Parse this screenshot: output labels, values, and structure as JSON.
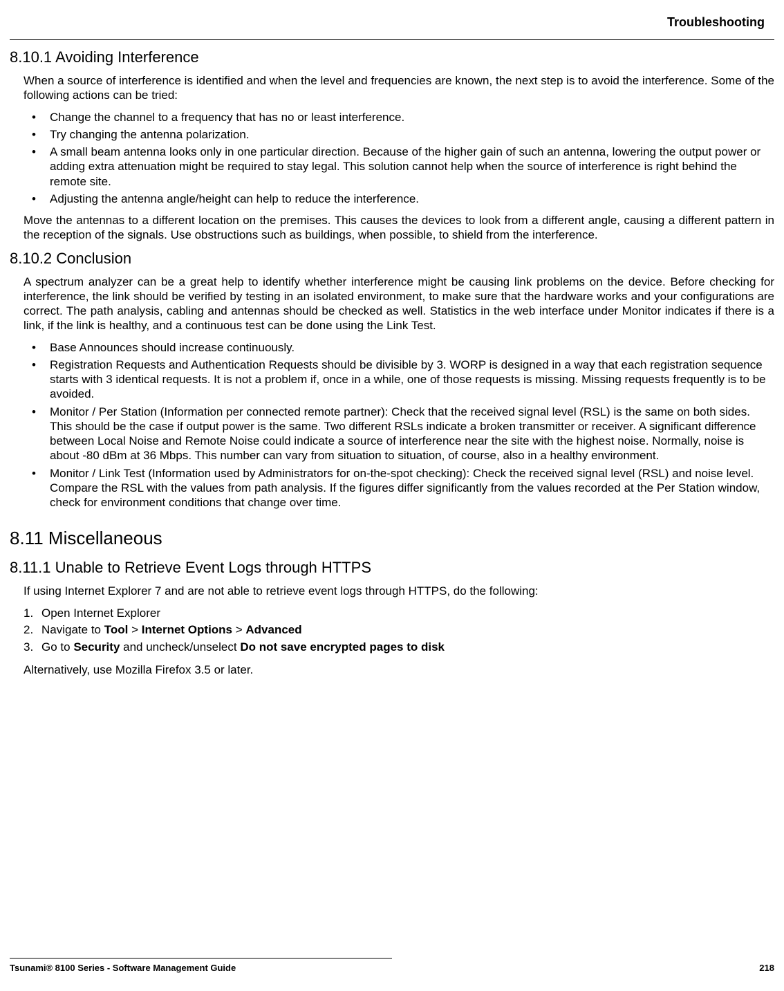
{
  "header": {
    "chapter": "Troubleshooting"
  },
  "sections": {
    "s1": {
      "number": "8.10.1",
      "title": "Avoiding Interference",
      "intro": "When a source of interference is identified and when the level and frequencies are known, the next step is to avoid the interference. Some of the following actions can be tried:",
      "bullets": [
        "Change the channel to a frequency that has no or least interference.",
        "Try changing the antenna polarization.",
        "A small beam antenna looks only in one particular direction. Because of the higher gain of such an antenna, lowering the output power or adding extra attenuation might be required to stay legal. This solution cannot help when the source of interference is right behind the remote site.",
        "Adjusting the antenna angle/height can help to reduce the interference."
      ],
      "outro": "Move the antennas to a different location on the premises. This causes the devices to look from a different angle, causing a different pattern in the reception of the signals. Use obstructions such as buildings, when possible, to shield from the interference."
    },
    "s2": {
      "number": "8.10.2",
      "title": "Conclusion",
      "intro": "A spectrum analyzer can be a great help to identify whether interference might be causing link problems on the device. Before checking for interference, the link should be verified by testing in an isolated environment, to make sure that the hardware works and your configurations are correct. The path analysis, cabling and antennas should be checked as well. Statistics in the web interface under Monitor indicates if there is a link, if the link is healthy, and a continuous test can be done using the Link Test.",
      "bullets": [
        "Base Announces should increase continuously.",
        "Registration Requests and Authentication Requests should be divisible by 3. WORP is designed in a way that each registration sequence starts with 3 identical requests. It is not a problem if, once in a while, one of those requests is missing. Missing requests frequently is to be avoided.",
        "Monitor / Per Station (Information per connected remote partner): Check that the received signal level (RSL) is the same on both sides. This should be the case if output power is the same. Two different RSLs indicate a broken transmitter or receiver. A significant difference between Local Noise and Remote Noise could indicate a source of interference near the site with the highest noise. Normally, noise is about -80 dBm at 36 Mbps. This number can vary from situation to situation, of course, also in a healthy environment.",
        "Monitor / Link Test (Information used by Administrators for on-the-spot checking): Check the received signal level (RSL) and noise level. Compare the RSL with the values from path analysis. If the figures differ significantly from the values recorded at the Per Station window, check for environment conditions that change over time."
      ]
    },
    "s3": {
      "number": "8.11",
      "title": "Miscellaneous"
    },
    "s4": {
      "number": "8.11.1",
      "title": "Unable to Retrieve Event Logs through HTTPS",
      "intro": "If using Internet Explorer 7 and are not able to retrieve event logs through HTTPS, do the following:",
      "steps": {
        "step1": "Open Internet Explorer",
        "step2_pre": "Navigate to ",
        "step2_b1": "Tool",
        "step2_sep1": " > ",
        "step2_b2": "Internet Options",
        "step2_sep2": " > ",
        "step2_b3": "Advanced",
        "step3_pre": "Go to ",
        "step3_b1": "Security",
        "step3_mid": " and uncheck/unselect ",
        "step3_b2": "Do not save encrypted pages to disk"
      },
      "outro": "Alternatively, use Mozilla Firefox 3.5 or later."
    }
  },
  "footer": {
    "product": "Tsunami® 8100 Series - Software Management Guide",
    "page": "218"
  }
}
